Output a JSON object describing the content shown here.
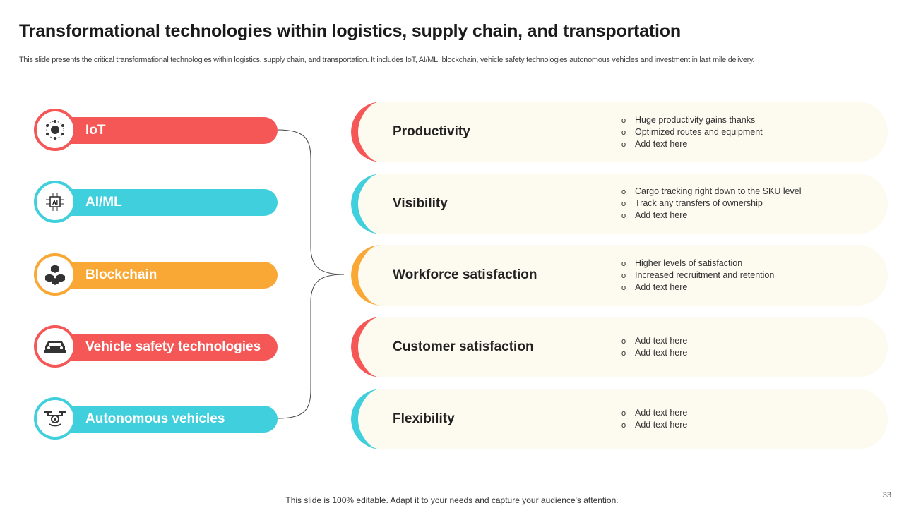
{
  "header": {
    "title": "Transformational technologies within logistics, supply chain, and transportation",
    "subtitle": "This slide presents the critical transformational technologies within logistics, supply chain, and transportation. It includes IoT, AI/ML,  blockchain, vehicle safety technologies autonomous vehicles and investment in last mile delivery."
  },
  "colors": {
    "red": "#f55656",
    "cyan": "#40cfdc",
    "orange": "#f9a835",
    "card": "#fdfaf0"
  },
  "technologies": [
    {
      "label": "IoT",
      "icon": "network-icon",
      "color": "#f55656"
    },
    {
      "label": "AI/ML",
      "icon": "ai-chip-icon",
      "color": "#40cfdc"
    },
    {
      "label": "Blockchain",
      "icon": "blockchain-cubes-icon",
      "color": "#f9a835"
    },
    {
      "label": "Vehicle safety technologies",
      "icon": "car-icon",
      "color": "#f55656"
    },
    {
      "label": "Autonomous vehicles",
      "icon": "drone-icon",
      "color": "#40cfdc"
    }
  ],
  "benefits": [
    {
      "title": "Productivity",
      "color": "#f55656",
      "bullets": [
        "Huge productivity gains thanks",
        "Optimized routes and equipment",
        "Add text here"
      ]
    },
    {
      "title": "Visibility",
      "color": "#40cfdc",
      "bullets": [
        "Cargo tracking right down to the SKU level",
        "Track any transfers of ownership",
        "Add text here"
      ]
    },
    {
      "title": "Workforce satisfaction",
      "color": "#f9a835",
      "bullets": [
        "Higher levels of satisfaction",
        "Increased recruitment and retention",
        "Add text here"
      ]
    },
    {
      "title": "Customer satisfaction",
      "color": "#f55656",
      "bullets": [
        "Add text here",
        "Add text here"
      ]
    },
    {
      "title": "Flexibility",
      "color": "#40cfdc",
      "bullets": [
        "Add text here",
        "Add text here"
      ]
    }
  ],
  "footer": {
    "text": "This slide is 100% editable. Adapt it to your needs and capture your audience's attention.",
    "page_number": "33"
  }
}
